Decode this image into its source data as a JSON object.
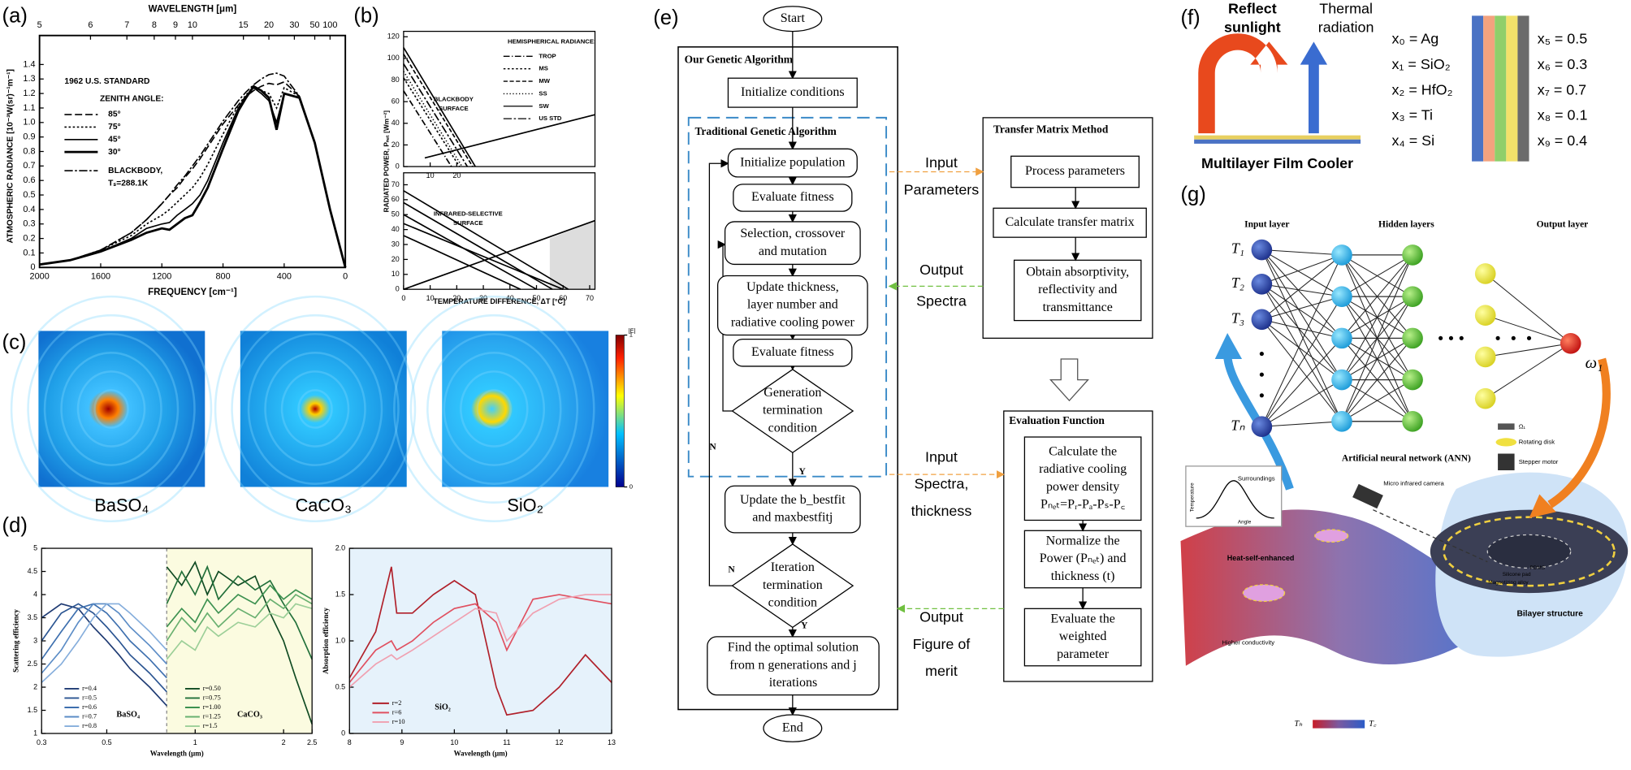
{
  "a": {
    "label": "(a)",
    "top_axis_label": "WAVELENGTH [μm]",
    "x_label": "FREQUENCY [cm⁻¹]",
    "y_label": "ATMOSPHERIC RADIANCE [10⁻³W(sr)⁻¹m⁻¹]",
    "standard": "1962 U.S. STANDARD",
    "legend_title": "ZENITH ANGLE:",
    "blackbody_note": "Tₛ=288.1K",
    "chart": {
      "type": "line",
      "xlim": [
        2000,
        0
      ],
      "ylim": [
        0,
        1.6
      ],
      "xticks": [
        2000,
        1600,
        1200,
        800,
        400,
        0
      ],
      "yticks": [
        0,
        0.1,
        0.2,
        0.3,
        0.4,
        0.5,
        0.6,
        0.7,
        0.8,
        0.9,
        {
          "value": 1,
          "label": "1.0"
        },
        1.1,
        1.2,
        1.3,
        1.4
      ],
      "top_ticks": [
        5,
        6,
        7,
        8,
        9,
        10,
        15,
        20,
        30,
        50,
        100
      ],
      "x": [
        2000,
        1800,
        1600,
        1400,
        1300,
        1200,
        1150,
        1100,
        1050,
        1000,
        950,
        900,
        800,
        700,
        650,
        600,
        550,
        500,
        450,
        400,
        300,
        200,
        100,
        0
      ],
      "series": [
        {
          "name": "85°",
          "color": "#000",
          "dash": "7 3",
          "values": [
            0.02,
            0.05,
            0.12,
            0.24,
            0.33,
            0.44,
            0.5,
            0.55,
            0.62,
            0.68,
            0.75,
            0.83,
            0.99,
            1.12,
            1.18,
            1.22,
            1.25,
            1.27,
            1.26,
            1.28,
            1.18,
            0.86,
            0.4,
            0
          ]
        },
        {
          "name": "75°",
          "color": "#000",
          "dash": "2 2",
          "values": [
            0.02,
            0.05,
            0.12,
            0.22,
            0.3,
            0.36,
            0.4,
            0.45,
            0.5,
            0.55,
            0.62,
            0.71,
            0.92,
            1.12,
            1.19,
            1.24,
            1.22,
            1.2,
            1.1,
            1.24,
            1.18,
            0.86,
            0.4,
            0
          ]
        },
        {
          "name": "45°",
          "color": "#000",
          "dash": "none",
          "values": [
            0.02,
            0.05,
            0.11,
            0.2,
            0.27,
            0.3,
            0.31,
            0.36,
            0.4,
            0.44,
            0.5,
            0.6,
            0.86,
            1.1,
            1.18,
            1.24,
            1.2,
            1.15,
            1,
            1.2,
            1.17,
            0.86,
            0.4,
            0
          ]
        },
        {
          "name": "30°",
          "color": "#000",
          "dash": "none",
          "width": 2.2,
          "values": [
            0.02,
            0.05,
            0.11,
            0.19,
            0.24,
            0.27,
            0.26,
            0.3,
            0.34,
            0.36,
            0.45,
            0.55,
            0.82,
            1.08,
            1.17,
            1.25,
            1.22,
            1.17,
            0.95,
            1.2,
            1.17,
            0.86,
            0.4,
            0
          ]
        },
        {
          "name": "BLACKBODY,",
          "color": "#000",
          "dash": "8 2 2 2",
          "values": [
            0.02,
            0.05,
            0.12,
            0.24,
            0.33,
            0.44,
            0.5,
            0.57,
            0.63,
            0.7,
            0.77,
            0.85,
            1.01,
            1.15,
            1.21,
            1.26,
            1.3,
            1.33,
            1.34,
            1.32,
            1.18,
            0.86,
            0.4,
            0
          ]
        }
      ]
    }
  },
  "b": {
    "label": "(b)",
    "y_label": "RADIATED POWER, Pₙₑₜ [Wm⁻²]",
    "x_label": "TEMPERATURE DIFFERENCE, ΔT [°C]",
    "legend_title": "HEMISPHERICAL RADIANCE:",
    "upper_note": [
      "BLACKBODY",
      "SURFACE"
    ],
    "lower_note": [
      "INFRARED-SELECTIVE",
      "SURFACE"
    ],
    "upper": {
      "type": "line",
      "xlim": [
        0,
        72
      ],
      "ylim": [
        0,
        125
      ],
      "xticks": [
        10,
        20
      ],
      "yticks": [
        0,
        20,
        40,
        60,
        80,
        100,
        120
      ],
      "series": [
        {
          "name": "TROP",
          "color": "#000",
          "dash": "6 2 1 2",
          "x": [
            0,
            18
          ],
          "values": [
            70,
            0
          ]
        },
        {
          "name": "MS",
          "color": "#000",
          "dash": "2 2",
          "x": [
            0,
            21
          ],
          "values": [
            82,
            0
          ]
        },
        {
          "name": "MW",
          "color": "#000",
          "dash": "4 2",
          "x": [
            0,
            26
          ],
          "values": [
            104,
            0
          ]
        },
        {
          "name": "SS",
          "color": "#000",
          "dash": "1 2",
          "x": [
            0,
            22
          ],
          "values": [
            88,
            0
          ]
        },
        {
          "name": "SW",
          "color": "#000",
          "dash": "none",
          "x": [
            0,
            27
          ],
          "values": [
            110,
            0
          ]
        },
        {
          "name": "US STD",
          "color": "#000",
          "dash": "8 2 2 2",
          "x": [
            0,
            24
          ],
          "values": [
            95,
            0
          ]
        },
        {
          "color": "#000",
          "dash": "none",
          "x": [
            8,
            72
          ],
          "values": [
            8,
            48
          ]
        }
      ]
    },
    "lower": {
      "type": "line",
      "xlim": [
        0,
        72
      ],
      "ylim": [
        0,
        78
      ],
      "xticks": [
        0,
        10,
        20,
        30,
        40,
        50,
        60,
        70
      ],
      "yticks": [
        0,
        10,
        20,
        30,
        40,
        50,
        60,
        70
      ],
      "series": [
        {
          "color": "#000",
          "dash": "none",
          "x": [
            0,
            50
          ],
          "values": [
            50,
            0
          ]
        },
        {
          "color": "#000",
          "dash": "none",
          "x": [
            0,
            56
          ],
          "values": [
            58,
            0
          ]
        },
        {
          "color": "#000",
          "dash": "none",
          "x": [
            0,
            62
          ],
          "values": [
            66,
            0
          ]
        },
        {
          "color": "#000",
          "dash": "none",
          "x": [
            0,
            60
          ],
          "values": [
            44,
            0
          ]
        },
        {
          "color": "#000",
          "dash": "none",
          "x": [
            0,
            44
          ],
          "values": [
            36,
            0
          ]
        },
        {
          "color": "#000",
          "dash": "none",
          "x": [
            0,
            72
          ],
          "values": [
            0,
            46
          ]
        }
      ]
    }
  },
  "c": {
    "label": "(c)",
    "materials": [
      "BaSO₄",
      "CaCO₃",
      "SiO₂"
    ],
    "colorbar": {
      "title": "|E|",
      "ticks": [
        0,
        1
      ]
    }
  },
  "d": {
    "label": "(d)",
    "left": {
      "type": "line",
      "log_x": true,
      "x_label": "Wavelength (μm)",
      "y_label": "Scattering efficiency",
      "xlim": [
        0.3,
        2.5
      ],
      "ylim": [
        1,
        5
      ],
      "xticks": [
        0.3,
        0.5,
        1,
        2,
        2.5
      ],
      "yticks": [
        1,
        1.5,
        2,
        2.5,
        3,
        3.5,
        4,
        4.5,
        5
      ],
      "divider": 0.8,
      "group_labels": [
        "BaSO₄",
        "CaCO₃"
      ],
      "series": [
        {
          "name": "r=0.4",
          "color": "#1f3b73",
          "x": [
            0.3,
            0.35,
            0.4,
            0.45,
            0.5,
            0.55,
            0.6,
            0.7,
            0.8
          ],
          "values": [
            3.5,
            3.8,
            3.7,
            3.3,
            3,
            2.7,
            2.4,
            2,
            1.6
          ]
        },
        {
          "name": "r=0.5",
          "color": "#2b5592",
          "x": [
            0.3,
            0.35,
            0.4,
            0.45,
            0.5,
            0.55,
            0.6,
            0.7,
            0.8
          ],
          "values": [
            3,
            3.6,
            3.8,
            3.6,
            3.3,
            3,
            2.7,
            2.3,
            1.9
          ]
        },
        {
          "name": "r=0.6",
          "color": "#3d6fae",
          "x": [
            0.3,
            0.35,
            0.4,
            0.45,
            0.5,
            0.55,
            0.6,
            0.7,
            0.8
          ],
          "values": [
            2.6,
            3.2,
            3.7,
            3.8,
            3.6,
            3.3,
            3,
            2.6,
            2.2
          ]
        },
        {
          "name": "r=0.7",
          "color": "#5b8cc6",
          "x": [
            0.3,
            0.35,
            0.4,
            0.45,
            0.5,
            0.55,
            0.6,
            0.7,
            0.8
          ],
          "values": [
            2.3,
            2.8,
            3.4,
            3.8,
            3.8,
            3.6,
            3.3,
            2.9,
            2.5
          ]
        },
        {
          "name": "r=0.8",
          "color": "#86aedc",
          "x": [
            0.3,
            0.35,
            0.4,
            0.45,
            0.5,
            0.55,
            0.6,
            0.7,
            0.8
          ],
          "values": [
            2.1,
            2.5,
            3,
            3.5,
            3.8,
            3.8,
            3.6,
            3.2,
            2.8
          ]
        },
        {
          "name": "r=0.50",
          "color": "#0f4a22",
          "x": [
            0.8,
            0.9,
            1,
            1.1,
            1.2,
            1.4,
            1.6,
            1.8,
            2,
            2.2,
            2.5
          ],
          "values": [
            4.6,
            4.2,
            4.7,
            4,
            4.5,
            4.2,
            4.4,
            3.6,
            3,
            2.2,
            1.2
          ]
        },
        {
          "name": "r=0.75",
          "color": "#22703a",
          "x": [
            0.8,
            0.9,
            1,
            1.1,
            1.2,
            1.4,
            1.6,
            1.8,
            2,
            2.2,
            2.5
          ],
          "values": [
            3.8,
            4.5,
            4,
            4.6,
            3.9,
            4.4,
            4.1,
            4.3,
            3.8,
            3.4,
            2.6
          ]
        },
        {
          "name": "r=1.00",
          "color": "#3d9150",
          "x": [
            0.8,
            0.9,
            1,
            1.1,
            1.2,
            1.4,
            1.6,
            1.8,
            2,
            2.2,
            2.5
          ],
          "values": [
            3.3,
            3.7,
            3.4,
            3.9,
            3.6,
            4,
            3.8,
            4.2,
            3.9,
            4.1,
            3.9
          ]
        },
        {
          "name": "r=1.25",
          "color": "#69b070",
          "x": [
            0.8,
            0.9,
            1,
            1.1,
            1.2,
            1.4,
            1.6,
            1.8,
            2,
            2.2,
            2.5
          ],
          "values": [
            3,
            3.5,
            3.2,
            3.6,
            3.3,
            3.7,
            3.5,
            3.9,
            3.7,
            4,
            3.8
          ]
        },
        {
          "name": "r=1.5",
          "color": "#9ccf98",
          "x": [
            0.8,
            0.9,
            1,
            1.1,
            1.2,
            1.4,
            1.6,
            1.8,
            2,
            2.2,
            2.5
          ],
          "values": [
            2.6,
            3,
            2.8,
            3.3,
            3.1,
            3.4,
            3.3,
            3.6,
            3.5,
            3.8,
            3.7
          ]
        }
      ]
    },
    "right": {
      "type": "line",
      "x_label": "Wavelength (μm)",
      "y_label": "Absorption efficiency",
      "xlim": [
        8,
        13
      ],
      "ylim": [
        0,
        2
      ],
      "xticks": [
        8,
        9,
        10,
        11,
        12,
        13
      ],
      "yticks": [
        0,
        0.5,
        {
          "value": 1,
          "label": "1.0"
        },
        1.5,
        {
          "value": 2,
          "label": "2.0"
        }
      ],
      "group_label": "SiO₂",
      "x": [
        8,
        8.5,
        8.8,
        8.9,
        9.2,
        9.6,
        10,
        10.4,
        10.8,
        11,
        11.5,
        12,
        12.5,
        13
      ],
      "series": [
        {
          "name": "r=2",
          "color": "#b0202a",
          "values": [
            0.6,
            1.1,
            1.8,
            1.3,
            1.3,
            1.5,
            1.65,
            1.5,
            0.5,
            0.2,
            0.25,
            0.5,
            0.85,
            0.55
          ]
        },
        {
          "name": "r=6",
          "color": "#e05060",
          "values": [
            0.55,
            0.9,
            1,
            0.9,
            1,
            1.2,
            1.35,
            1.4,
            1.2,
            0.9,
            1.45,
            1.5,
            1.45,
            1.4
          ]
        },
        {
          "name": "r=10",
          "color": "#f0a0b0",
          "values": [
            0.5,
            0.75,
            0.85,
            0.8,
            0.9,
            1.05,
            1.2,
            1.35,
            1.3,
            1,
            1.3,
            1.45,
            1.5,
            1.5
          ]
        }
      ]
    }
  },
  "e": {
    "label": "(e)",
    "start": "Start",
    "end": "End",
    "outer_title": "Our Genetic Algorithm",
    "init_conditions": [
      "Initialize conditions"
    ],
    "inner_title": "Traditional Genetic Algorithm",
    "init_population": [
      "Initialize population"
    ],
    "evaluate_1": [
      "Evaluate fitness"
    ],
    "selection": [
      "Selection, crossover",
      "and mutation"
    ],
    "update": [
      "Update thickness,",
      "layer number and",
      "radiative cooling power"
    ],
    "evaluate_2": [
      "Evaluate fitness"
    ],
    "gen_term": [
      "Generation",
      "termination",
      "condition"
    ],
    "gen_no": "N",
    "gen_yes": "Y",
    "bestfit": [
      "Update the b_bestfit",
      "and maxbestfitj"
    ],
    "iter_term": [
      "Iteration",
      "termination",
      "condition"
    ],
    "iter_no": "N",
    "iter_yes": "Y",
    "optimal": [
      "Find the optimal solution",
      "from n generations and j",
      "iterations"
    ],
    "tmm_title": "Transfer Matrix Method",
    "tmm_steps": [
      [
        "Process parameters"
      ],
      [
        "Calculate transfer matrix"
      ],
      [
        "Obtain absorptivity,",
        "reflectivity and",
        "transmittance"
      ]
    ],
    "eval_title": "Evaluation Function",
    "eval_steps": [
      [
        "Calculate the",
        "radiative cooling",
        "power density",
        "Pₙₑₜ=Pᵣ-Pₐ-Pₛ-P꜀"
      ],
      [
        "Normalize the",
        "Power (Pₙₑₜ) and",
        "thickness (t)"
      ],
      [
        "Evaluate the",
        "weighted",
        "parameter"
      ]
    ],
    "links": [
      [
        "Input",
        "Parameters"
      ],
      [
        "Output",
        "Spectra"
      ],
      [
        "Input",
        "Spectra,",
        "thickness"
      ],
      [
        "Output",
        "Figure of",
        "merit"
      ]
    ]
  },
  "f": {
    "label": "(f)",
    "reflect": [
      "Reflect",
      "sunlight"
    ],
    "thermal": [
      "Thermal",
      "radiation"
    ],
    "device": "Multilayer Film Cooler",
    "materials": [
      {
        "text": "x₀ = Ag",
        "color": "#3a5ba8"
      },
      {
        "text": "x₁ = SiO₂",
        "color": "#e0601f"
      },
      {
        "text": "x₂ = HfO₂",
        "color": "#5a9a3a"
      },
      {
        "text": "x₃ = Ti",
        "color": "#d8a420"
      },
      {
        "text": "x₄ = Si",
        "color": "#555555"
      }
    ],
    "params": [
      {
        "text": "x₅ = 0.5",
        "color": "#3a5ba8"
      },
      {
        "text": "x₆ = 0.3",
        "color": "#e0601f"
      },
      {
        "text": "x₇ = 0.7",
        "color": "#5a9a3a"
      },
      {
        "text": "x₈ = 0.1",
        "color": "#d8a420"
      },
      {
        "text": "x₉ = 0.4",
        "color": "#555555"
      }
    ],
    "stripes": [
      "#4a72c4",
      "#f3a27e",
      "#8fcf6a",
      "#f2e16a",
      "#6b6b6b"
    ]
  },
  "g": {
    "label": "(g)",
    "input_layer": "Input layer",
    "hidden_layers": "Hidden layers",
    "output_layer": "Output layer",
    "inputs": [
      "T₁",
      "T₂",
      "T₃",
      "Tₙ"
    ],
    "output": "ω₁",
    "ann": "Artificial neural network (ANN)",
    "device": [
      "Ω₁",
      "Rotating disk",
      "Stepper motor"
    ],
    "camera": "Micro infrared camera",
    "inset": [
      "Surroundings",
      "Temperature",
      "Angle"
    ],
    "surface": [
      "Heat-self-enhanced",
      "Higher conductivity"
    ],
    "scale": [
      "Tₕ",
      "T꜀"
    ],
    "bilayer": "Bilayer structure",
    "disk_labels": [
      "Magnetizing alloy",
      "PDMS",
      "Silicone pad"
    ]
  }
}
